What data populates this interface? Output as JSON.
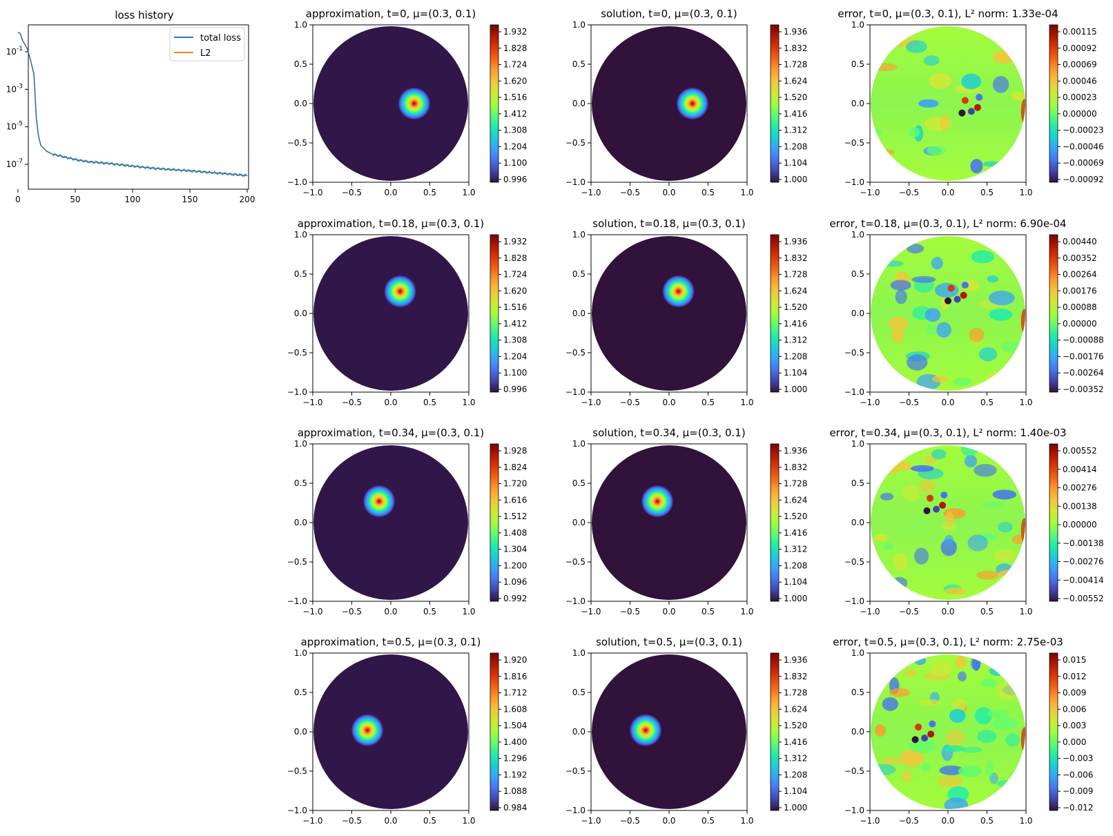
{
  "colormap": [
    "#30123b",
    "#4145ab",
    "#4675ed",
    "#39a2fc",
    "#1bcfd4",
    "#24eca6",
    "#61fc6c",
    "#a4fc3b",
    "#d1e834",
    "#f3c63a",
    "#fe9b2d",
    "#f36315",
    "#d93806",
    "#b11901",
    "#7a0402"
  ],
  "loss_panel": {
    "title": "loss history",
    "legend": [
      "total loss",
      "L2"
    ],
    "legend_colors": [
      "#1f77b4",
      "#ff7f0e"
    ],
    "y_ticks": [
      "10^-1",
      "10^-3",
      "10^-5",
      "10^-7"
    ],
    "x_ticks": [
      "0",
      "50",
      "100",
      "150",
      "200"
    ]
  },
  "disk_axis_ticks": {
    "x": [
      "−1.0",
      "−0.5",
      "0.0",
      "0.5",
      "1.0"
    ],
    "y": [
      "1.0",
      "0.5",
      "0.0",
      "−0.5",
      "−1.0"
    ]
  },
  "rows": [
    {
      "approximation": {
        "title": "approximation, t=0, μ=(0.3, 0.1)",
        "cbar": [
          "1.932",
          "1.828",
          "1.724",
          "1.620",
          "1.516",
          "1.412",
          "1.308",
          "1.204",
          "1.100",
          "0.996"
        ]
      },
      "solution": {
        "title": "solution, t=0, μ=(0.3, 0.1)",
        "cbar": [
          "1.936",
          "1.832",
          "1.728",
          "1.624",
          "1.520",
          "1.416",
          "1.312",
          "1.208",
          "1.104",
          "1.000"
        ]
      },
      "error": {
        "title": "error, t=0, μ=(0.3, 0.1), L² norm: 1.33e-04",
        "cbar": [
          "0.00115",
          "0.00092",
          "0.00069",
          "0.00046",
          "0.00023",
          "0.00000",
          "−0.00023",
          "−0.00046",
          "−0.00069",
          "−0.00092"
        ]
      }
    },
    {
      "approximation": {
        "title": "approximation, t=0.18, μ=(0.3, 0.1)",
        "cbar": [
          "1.932",
          "1.828",
          "1.724",
          "1.620",
          "1.516",
          "1.412",
          "1.308",
          "1.204",
          "1.100",
          "0.996"
        ]
      },
      "solution": {
        "title": "solution, t=0.18, μ=(0.3, 0.1)",
        "cbar": [
          "1.936",
          "1.832",
          "1.728",
          "1.624",
          "1.520",
          "1.416",
          "1.312",
          "1.208",
          "1.104",
          "1.000"
        ]
      },
      "error": {
        "title": "error, t=0.18, μ=(0.3, 0.1), L² norm: 6.90e-04",
        "cbar": [
          "0.00440",
          "0.00352",
          "0.00264",
          "0.00176",
          "0.00088",
          "0.00000",
          "−0.00088",
          "−0.00176",
          "−0.00264",
          "−0.00352"
        ]
      }
    },
    {
      "approximation": {
        "title": "approximation, t=0.34, μ=(0.3, 0.1)",
        "cbar": [
          "1.928",
          "1.824",
          "1.720",
          "1.616",
          "1.512",
          "1.408",
          "1.304",
          "1.200",
          "1.096",
          "0.992"
        ]
      },
      "solution": {
        "title": "solution, t=0.34, μ=(0.3, 0.1)",
        "cbar": [
          "1.936",
          "1.832",
          "1.728",
          "1.624",
          "1.520",
          "1.416",
          "1.312",
          "1.208",
          "1.104",
          "1.000"
        ]
      },
      "error": {
        "title": "error, t=0.34, μ=(0.3, 0.1), L² norm: 1.40e-03",
        "cbar": [
          "0.00552",
          "0.00414",
          "0.00276",
          "0.00138",
          "0.00000",
          "−0.00138",
          "−0.00276",
          "−0.00414",
          "−0.00552"
        ]
      }
    },
    {
      "approximation": {
        "title": "approximation, t=0.5, μ=(0.3, 0.1)",
        "cbar": [
          "1.920",
          "1.816",
          "1.712",
          "1.608",
          "1.504",
          "1.400",
          "1.296",
          "1.192",
          "1.088",
          "0.984"
        ]
      },
      "solution": {
        "title": "solution, t=0.5, μ=(0.3, 0.1)",
        "cbar": [
          "1.936",
          "1.832",
          "1.728",
          "1.624",
          "1.520",
          "1.416",
          "1.312",
          "1.208",
          "1.104",
          "1.000"
        ]
      },
      "error": {
        "title": "error, t=0.5, μ=(0.3, 0.1), L² norm: 2.75e-03",
        "cbar": [
          "0.015",
          "0.012",
          "0.009",
          "0.006",
          "0.003",
          "0.000",
          "−0.003",
          "−0.006",
          "−0.009",
          "−0.012"
        ]
      }
    }
  ],
  "chart_data": [
    {
      "type": "line",
      "title": "loss history",
      "xlabel": "",
      "ylabel": "",
      "xlim": [
        0,
        200
      ],
      "yscale": "log",
      "ylim": [
        1e-08,
        2
      ],
      "legend_position": "top-right",
      "series": [
        {
          "name": "total loss",
          "color": "#1f77b4",
          "x": [
            0,
            2,
            4,
            6,
            8,
            10,
            12,
            14,
            16,
            18,
            20,
            25,
            30,
            40,
            50,
            60,
            80,
            100,
            120,
            150,
            180,
            200
          ],
          "y": [
            1.1,
            0.95,
            0.4,
            0.25,
            0.15,
            0.06,
            0.02,
            0.006,
            3e-05,
            3e-06,
            1e-06,
            5e-07,
            3.5e-07,
            2.5e-07,
            1.8e-07,
            1.4e-07,
            1.1e-07,
            8e-08,
            6e-08,
            4.5e-08,
            3.2e-08,
            2.5e-08
          ]
        },
        {
          "name": "L2",
          "color": "#ff7f0e",
          "x": [
            0,
            2,
            4,
            6,
            8,
            10,
            12,
            14,
            16,
            18,
            20,
            25,
            30,
            40,
            50,
            60,
            80,
            100,
            120,
            150,
            180,
            200
          ],
          "y": [
            1.1,
            0.95,
            0.4,
            0.25,
            0.15,
            0.06,
            0.02,
            0.006,
            3e-05,
            3e-06,
            1e-06,
            5e-07,
            3.5e-07,
            2.5e-07,
            1.8e-07,
            1.4e-07,
            1.1e-07,
            8e-08,
            6e-08,
            4.5e-08,
            3.2e-08,
            2.5e-08
          ]
        }
      ]
    },
    {
      "type": "heatmap",
      "description_of_panels": "12 disk-domain heatmaps on [-1,1]^2: approximation, solution and error at t = 0, 0.18, 0.34, 0.5 for mu=(0.3, 0.1)",
      "xlim": [
        -1,
        1
      ],
      "ylim": [
        -1,
        1
      ],
      "gaussian_peak_center": [
        {
          "t": 0,
          "x": 0.3,
          "y": 0.0
        },
        {
          "t": 0.18,
          "x": 0.12,
          "y": 0.28
        },
        {
          "t": 0.34,
          "x": -0.15,
          "y": 0.27
        },
        {
          "t": 0.5,
          "x": -0.3,
          "y": 0.02
        }
      ],
      "value_range": {
        "approximation_min": 0.984,
        "approximation_max": 1.94,
        "solution_min": 1.0,
        "solution_max": 1.94
      },
      "error_range": [
        {
          "t": 0,
          "min": -0.00092,
          "max": 0.00115
        },
        {
          "t": 0.18,
          "min": -0.00352,
          "max": 0.0044
        },
        {
          "t": 0.34,
          "min": -0.0062,
          "max": 0.0062
        },
        {
          "t": 0.5,
          "min": -0.012,
          "max": 0.015
        }
      ]
    }
  ]
}
